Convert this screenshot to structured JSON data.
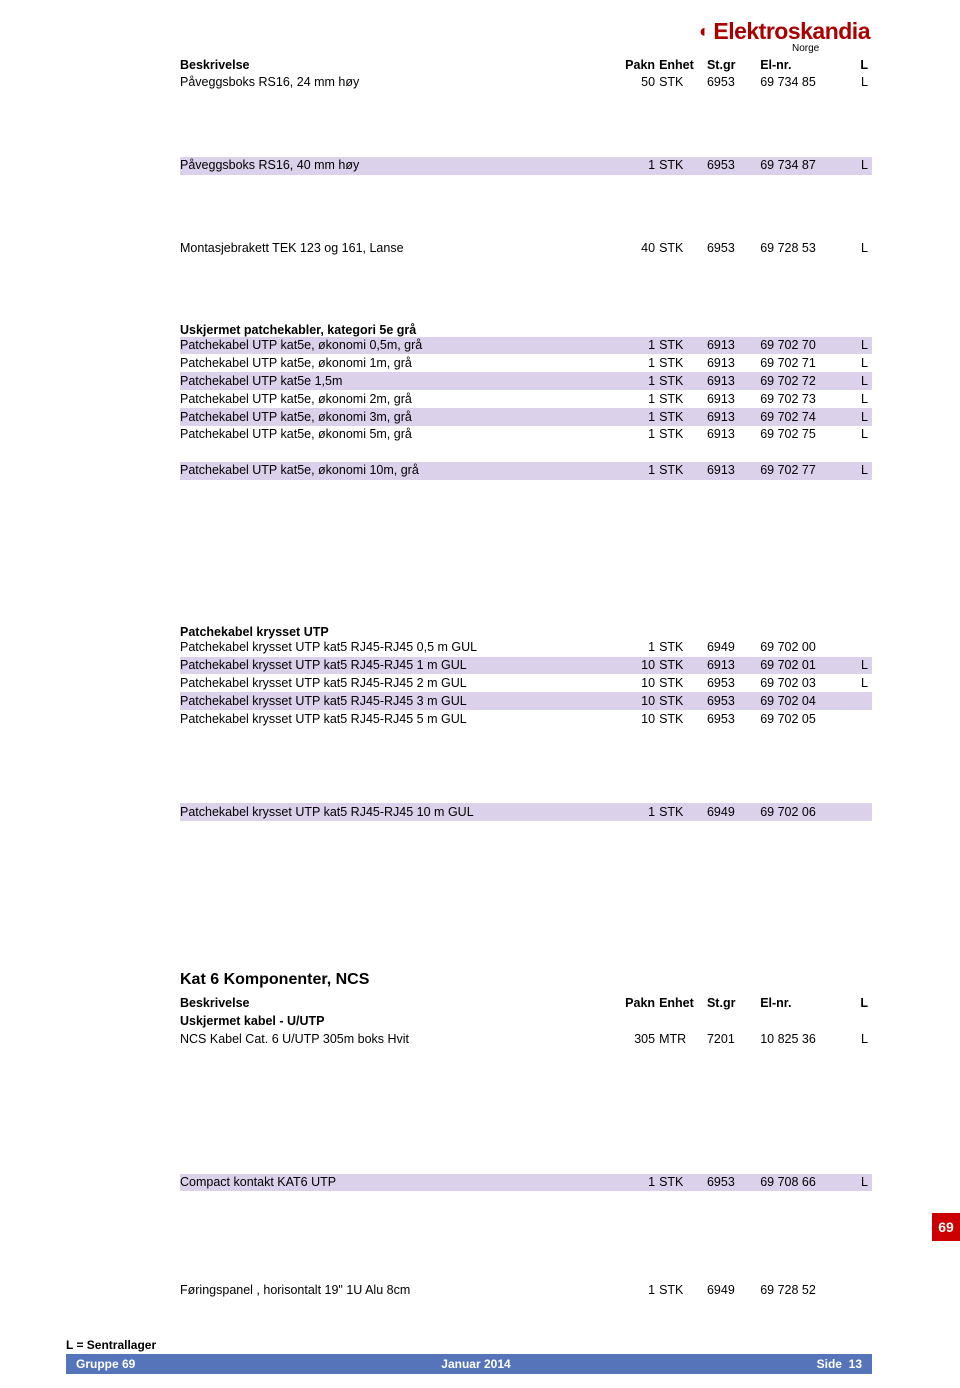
{
  "brand": {
    "name": "Elektroskandia",
    "country": "Norge",
    "color": "#aa0000"
  },
  "header": {
    "beskrivelse": "Beskrivelse",
    "pakn": "Pakn",
    "enhet": "Enhet",
    "stgr": "St.gr",
    "elnr": "El-nr.",
    "l": "L"
  },
  "section1": {
    "rows": [
      {
        "desc": "Påveggsboks RS16, 24 mm høy",
        "pakn": "50",
        "enhet": "STK",
        "stgr": "6953",
        "elnr": "69 734 85",
        "l": "L",
        "hl": false
      }
    ]
  },
  "section2": {
    "rows": [
      {
        "desc": "Påveggsboks RS16, 40 mm høy",
        "pakn": "1",
        "enhet": "STK",
        "stgr": "6953",
        "elnr": "69 734 87",
        "l": "L",
        "hl": true
      }
    ]
  },
  "section3": {
    "rows": [
      {
        "desc": "Montasjebrakett TEK 123 og 161, Lanse",
        "pakn": "40",
        "enhet": "STK",
        "stgr": "6953",
        "elnr": "69 728 53",
        "l": "L",
        "hl": false
      }
    ]
  },
  "section4": {
    "title": "Uskjermet patchekabler,  kategori 5e grå",
    "rows": [
      {
        "desc": "Patchekabel UTP kat5e, økonomi  0,5m, grå",
        "pakn": "1",
        "enhet": "STK",
        "stgr": "6913",
        "elnr": "69 702 70",
        "l": "L",
        "hl": true
      },
      {
        "desc": "Patchekabel UTP kat5e, økonomi  1m, grå",
        "pakn": "1",
        "enhet": "STK",
        "stgr": "6913",
        "elnr": "69 702 71",
        "l": "L",
        "hl": false
      },
      {
        "desc": "Patchekabel UTP kat5e 1,5m",
        "pakn": "1",
        "enhet": "STK",
        "stgr": "6913",
        "elnr": "69 702 72",
        "l": "L",
        "hl": true
      },
      {
        "desc": "Patchekabel UTP kat5e, økonomi  2m, grå",
        "pakn": "1",
        "enhet": "STK",
        "stgr": "6913",
        "elnr": "69 702 73",
        "l": "L",
        "hl": false
      },
      {
        "desc": "Patchekabel UTP kat5e, økonomi  3m, grå",
        "pakn": "1",
        "enhet": "STK",
        "stgr": "6913",
        "elnr": "69 702 74",
        "l": "L",
        "hl": true
      },
      {
        "desc": "Patchekabel UTP kat5e, økonomi  5m, grå",
        "pakn": "1",
        "enhet": "STK",
        "stgr": "6913",
        "elnr": "69 702 75",
        "l": "L",
        "hl": false
      }
    ]
  },
  "section5": {
    "rows": [
      {
        "desc": "Patchekabel UTP kat5e, økonomi  10m, grå",
        "pakn": "1",
        "enhet": "STK",
        "stgr": "6913",
        "elnr": "69 702 77",
        "l": "L",
        "hl": true
      }
    ]
  },
  "section6": {
    "title": "Patchekabel krysset UTP",
    "rows": [
      {
        "desc": "Patchekabel krysset UTP kat5 RJ45-RJ45 0,5 m GUL",
        "pakn": "1",
        "enhet": "STK",
        "stgr": "6949",
        "elnr": "69 702 00",
        "l": "",
        "hl": false
      },
      {
        "desc": "Patchekabel krysset UTP kat5 RJ45-RJ45 1 m GUL",
        "pakn": "10",
        "enhet": "STK",
        "stgr": "6913",
        "elnr": "69 702 01",
        "l": "L",
        "hl": true
      },
      {
        "desc": "Patchekabel krysset UTP kat5 RJ45-RJ45 2 m GUL",
        "pakn": "10",
        "enhet": "STK",
        "stgr": "6953",
        "elnr": "69 702 03",
        "l": "L",
        "hl": false
      },
      {
        "desc": "Patchekabel krysset UTP kat5 RJ45-RJ45 3 m GUL",
        "pakn": "10",
        "enhet": "STK",
        "stgr": "6953",
        "elnr": "69 702 04",
        "l": "",
        "hl": true
      },
      {
        "desc": "Patchekabel krysset UTP kat5 RJ45-RJ45 5 m GUL",
        "pakn": "10",
        "enhet": "STK",
        "stgr": "6953",
        "elnr": "69 702 05",
        "l": "",
        "hl": false
      }
    ]
  },
  "section7": {
    "rows": [
      {
        "desc": "Patchekabel krysset UTP kat5 RJ45-RJ45 10 m GUL",
        "pakn": "1",
        "enhet": "STK",
        "stgr": "6949",
        "elnr": "69 702 06",
        "l": "",
        "hl": true
      }
    ]
  },
  "kat6": {
    "title": "Kat 6 Komponenter, NCS",
    "subheader": "Uskjermet kabel - U/UTP",
    "rows": [
      {
        "desc": "NCS Kabel Cat. 6 U/UTP 305m boks Hvit",
        "pakn": "305",
        "enhet": "MTR",
        "stgr": "7201",
        "elnr": "10 825 36",
        "l": "L",
        "hl": false
      }
    ]
  },
  "section8": {
    "rows": [
      {
        "desc": "Compact kontakt KAT6 UTP",
        "pakn": "1",
        "enhet": "STK",
        "stgr": "6953",
        "elnr": "69 708 66",
        "l": "L",
        "hl": true
      }
    ]
  },
  "section9": {
    "rows": [
      {
        "desc": "Føringspanel , horisontalt 19\" 1U Alu 8cm",
        "pakn": "1",
        "enhet": "STK",
        "stgr": "6949",
        "elnr": "69 728 52",
        "l": "",
        "hl": false
      }
    ]
  },
  "side_badge": "69",
  "footer": {
    "note": "L = Sentrallager",
    "left": "Gruppe 69",
    "mid": "Januar 2014",
    "right_label": "Side",
    "right_page": "13"
  }
}
